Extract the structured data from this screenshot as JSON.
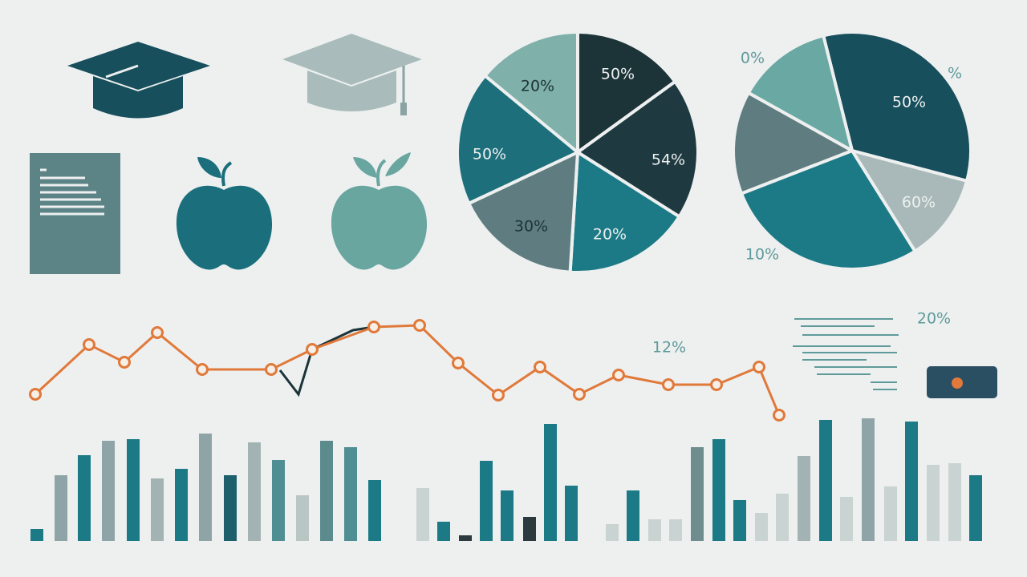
{
  "chart_data": [
    {
      "type": "pie",
      "values": [
        15,
        19,
        17,
        17,
        18,
        14
      ],
      "colors": [
        "#1c3338",
        "#1e3a40",
        "#1b7a86",
        "#5f7d80",
        "#1d6f7b",
        "#7fb0aa"
      ],
      "annotations": [
        "50%",
        "54%",
        "20%",
        "30%",
        "50%",
        "20%"
      ]
    },
    {
      "type": "pie",
      "values": [
        33,
        12,
        28,
        14,
        13
      ],
      "colors": [
        "#174f5c",
        "#a9b9b9",
        "#1b7a86",
        "#5f7d80",
        "#6aa9a3"
      ],
      "annotations": [
        "50%",
        "60%",
        "10%",
        "0%",
        "%"
      ]
    },
    {
      "type": "line",
      "x": [
        4.4,
        11.1,
        15.5,
        19.6,
        25.2,
        33.8,
        38.9,
        46.6,
        52.3,
        57.1,
        62.1,
        67.3,
        72.2,
        77.1,
        83.3,
        89.3,
        94.6,
        97.1
      ],
      "values": [
        34,
        65,
        54,
        72.5,
        49.5,
        49.5,
        62,
        76,
        77,
        53.5,
        33.5,
        51,
        34,
        46,
        40,
        40,
        51,
        21
      ],
      "color": "#e0793a",
      "xlim": [
        0,
        128
      ],
      "ylim": [
        0,
        100
      ],
      "annotations": [
        "12%",
        "20%"
      ]
    },
    {
      "type": "bar",
      "x": [
        4.6,
        7.6,
        10.5,
        13.5,
        16.6,
        19.6,
        22.6,
        25.6,
        28.7,
        31.7,
        34.7,
        37.7,
        40.7,
        43.7,
        46.7,
        52.7,
        55.3,
        58.0,
        60.6,
        63.2,
        66.0,
        68.6,
        71.2,
        76.3,
        78.9,
        81.6,
        84.2,
        86.9,
        89.6,
        92.2,
        94.9,
        97.5,
        100.2,
        102.9,
        105.5,
        108.2,
        111.0,
        113.6,
        116.3,
        119.0,
        121.6
      ],
      "values": [
        15,
        82,
        107,
        125,
        127,
        78,
        90,
        134,
        82,
        123,
        101,
        57,
        125,
        117,
        76,
        66,
        24,
        7,
        100,
        63,
        30,
        146,
        69,
        21,
        63,
        27,
        27,
        117,
        127,
        51,
        35,
        59,
        106,
        151,
        55,
        153,
        68,
        149,
        95,
        97,
        82
      ],
      "colors": [
        "#1b7a86",
        "#8fa4a6",
        "#1b7a86",
        "#8fa4a6",
        "#1b7a86",
        "#a3b3b3",
        "#1b7a86",
        "#8fa4a6",
        "#1d5f6b",
        "#a3b3b3",
        "#4f8e93",
        "#b8c6c4",
        "#5c8b8e",
        "#4f8e93",
        "#1b7a86",
        "#c9d3d1",
        "#1b7a86",
        "#2c3a3e",
        "#1b7a86",
        "#1b7a86",
        "#2c3a3e",
        "#1b7a86",
        "#1b7a86",
        "#c9d3d1",
        "#1b7a86",
        "#c9d3d1",
        "#c9d3d1",
        "#6f8c8e",
        "#1b7a86",
        "#1b7a86",
        "#c9d3d1",
        "#c9d3d1",
        "#a3b3b3",
        "#1b7a86",
        "#c9d3d1",
        "#8fa4a6",
        "#c9d3d1",
        "#1b7a86",
        "#c9d3d1",
        "#c9d3d1",
        "#1b7a86"
      ],
      "xlim": [
        0,
        128
      ],
      "ylim": [
        0,
        200
      ]
    }
  ]
}
